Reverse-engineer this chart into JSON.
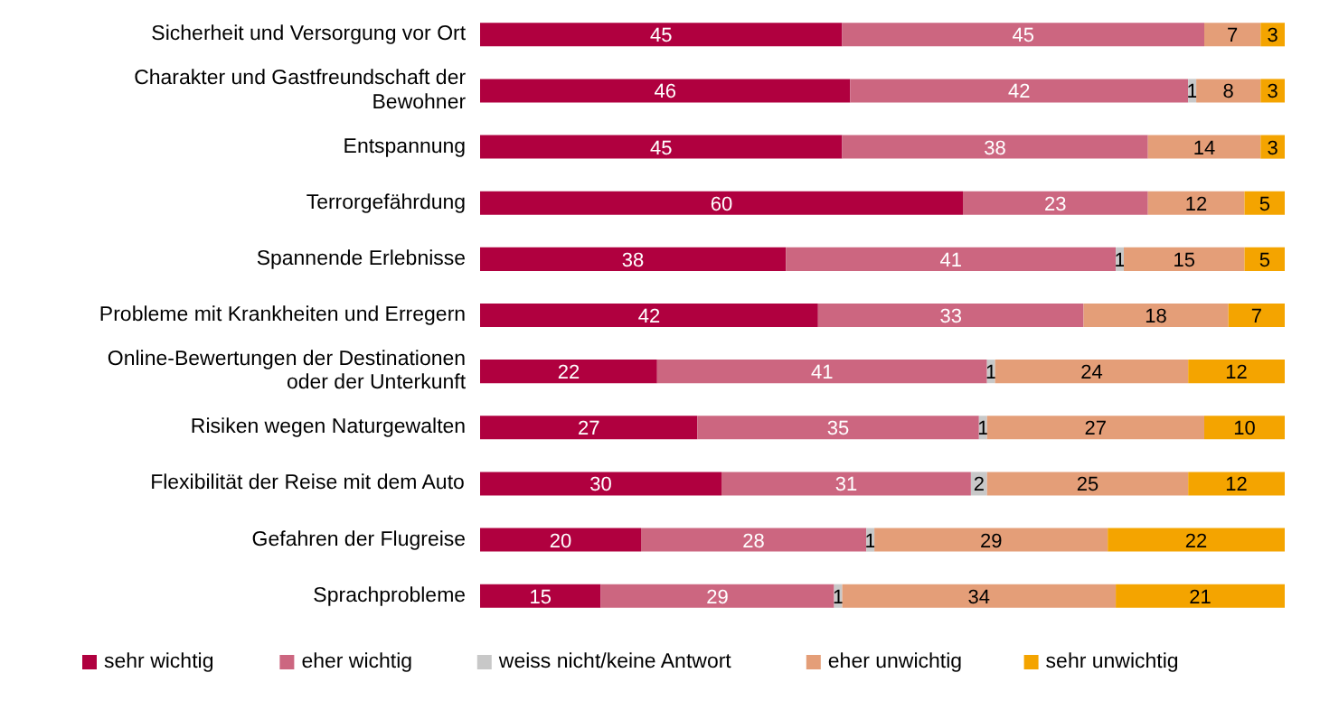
{
  "chart_data": {
    "type": "bar",
    "orientation": "horizontal",
    "stacked": true,
    "data_labels": true,
    "tick_labels": "y",
    "grid": false,
    "legend": "bottom",
    "xlim": [
      0,
      100
    ],
    "categories": [
      "Sicherheit und Versorgung vor Ort",
      "Charakter und Gastfreundschaft der\nBewohner",
      "Entspannung",
      "Terrorgefährdung",
      "Spannende Erlebnisse",
      "Probleme mit Krankheiten und Erregern",
      "Online-Bewertungen der Destinationen\noder der Unterkunft",
      "Risiken wegen Naturgewalten",
      "Flexibilität der Reise mit dem Auto",
      "Gefahren der Flugreise",
      "Sprachprobleme"
    ],
    "series": [
      {
        "name": "sehr wichtig",
        "color": "#b0003f",
        "values": [
          45,
          46,
          45,
          60,
          38,
          42,
          22,
          27,
          30,
          20,
          15
        ]
      },
      {
        "name": "eher wichtig",
        "color": "#cc6680",
        "values": [
          45,
          42,
          38,
          23,
          41,
          33,
          41,
          35,
          31,
          28,
          29
        ]
      },
      {
        "name": "weiss nicht/keine Antwort",
        "color": "#c8c8c8",
        "values": [
          null,
          1,
          null,
          null,
          1,
          null,
          1,
          1,
          2,
          1,
          1
        ]
      },
      {
        "name": "eher unwichtig",
        "color": "#e49e78",
        "values": [
          7,
          8,
          14,
          12,
          15,
          18,
          24,
          27,
          25,
          29,
          34
        ]
      },
      {
        "name": "sehr unwichtig",
        "color": "#f4a400",
        "values": [
          3,
          3,
          3,
          5,
          5,
          7,
          12,
          10,
          12,
          22,
          21
        ]
      }
    ]
  }
}
